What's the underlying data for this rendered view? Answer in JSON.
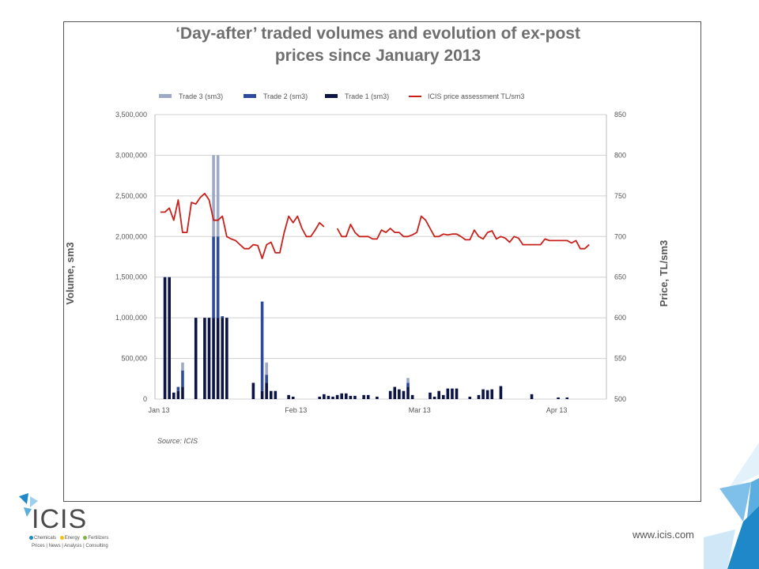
{
  "brand": {
    "name": "ICIS",
    "tagline_items": [
      "Chemicals",
      "Energy",
      "Fertilizers"
    ],
    "tagline_sub": "Prices | News | Analysis | Consulting",
    "website": "www.icis.com",
    "colors": {
      "blue": "#1e88c8",
      "light_blue": "#9dd0ef",
      "yellow": "#f4c20d",
      "green": "#7cb342"
    }
  },
  "chart_data": {
    "type": "bar",
    "title_line1": "‘Day-after’ traded volumes and evolution of ex-post",
    "title_line2": "prices since January 2013",
    "ylabel": "Volume, sm3",
    "y2label": "Price, TL/sm3",
    "source": "Source: ICIS",
    "ylim": [
      0,
      3500000
    ],
    "y2lim": [
      500,
      850
    ],
    "y_ticks": [
      "3,500,000",
      "3,000,000",
      "2,500,000",
      "2,000,000",
      "1,500,000",
      "1,000,000",
      "500,000",
      "0"
    ],
    "y2_ticks": [
      "850",
      "800",
      "750",
      "700",
      "650",
      "600",
      "550",
      "500"
    ],
    "x_ticks": [
      "Jan 13",
      "Feb 13",
      "Mar 13",
      "Apr 13"
    ],
    "legend": [
      {
        "name": "Trade 3 (sm3)",
        "color": "#9ea9c8"
      },
      {
        "name": "Trade 2 (sm3)",
        "color": "#2e4a9a"
      },
      {
        "name": "Trade 1 (sm3)",
        "color": "#0c1446"
      },
      {
        "name": "ICIS price assessment TL/sm3",
        "color": "#c8211b"
      }
    ],
    "grid": true,
    "legend_position": "top",
    "bars": [
      {
        "day": 1,
        "t1": 1500000,
        "t2": 0,
        "t3": 0
      },
      {
        "day": 2,
        "t1": 1500000,
        "t2": 0,
        "t3": 0
      },
      {
        "day": 3,
        "t1": 80000,
        "t2": 0,
        "t3": 0
      },
      {
        "day": 4,
        "t1": 100000,
        "t2": 50000,
        "t3": 0
      },
      {
        "day": 5,
        "t1": 150000,
        "t2": 200000,
        "t3": 100000
      },
      {
        "day": 8,
        "t1": 1000000,
        "t2": 0,
        "t3": 0
      },
      {
        "day": 10,
        "t1": 1000000,
        "t2": 0,
        "t3": 0
      },
      {
        "day": 11,
        "t1": 1000000,
        "t2": 0,
        "t3": 0
      },
      {
        "day": 12,
        "t1": 1000000,
        "t2": 1000000,
        "t3": 1000000
      },
      {
        "day": 13,
        "t1": 1000000,
        "t2": 1000000,
        "t3": 1000000
      },
      {
        "day": 14,
        "t1": 1000000,
        "t2": 20000,
        "t3": 0
      },
      {
        "day": 15,
        "t1": 1000000,
        "t2": 0,
        "t3": 0
      },
      {
        "day": 21,
        "t1": 200000,
        "t2": 0,
        "t3": 0
      },
      {
        "day": 23,
        "t1": 100000,
        "t2": 1100000,
        "t3": 0
      },
      {
        "day": 24,
        "t1": 200000,
        "t2": 100000,
        "t3": 150000
      },
      {
        "day": 25,
        "t1": 100000,
        "t2": 0,
        "t3": 0
      },
      {
        "day": 26,
        "t1": 100000,
        "t2": 0,
        "t3": 0
      },
      {
        "day": 29,
        "t1": 50000,
        "t2": 0,
        "t3": 0
      },
      {
        "day": 30,
        "t1": 30000,
        "t2": 0,
        "t3": 0
      },
      {
        "day": 36,
        "t1": 30000,
        "t2": 0,
        "t3": 0
      },
      {
        "day": 37,
        "t1": 60000,
        "t2": 0,
        "t3": 0
      },
      {
        "day": 38,
        "t1": 40000,
        "t2": 0,
        "t3": 0
      },
      {
        "day": 39,
        "t1": 30000,
        "t2": 0,
        "t3": 0
      },
      {
        "day": 40,
        "t1": 50000,
        "t2": 0,
        "t3": 0
      },
      {
        "day": 41,
        "t1": 70000,
        "t2": 0,
        "t3": 0
      },
      {
        "day": 42,
        "t1": 70000,
        "t2": 0,
        "t3": 0
      },
      {
        "day": 43,
        "t1": 40000,
        "t2": 0,
        "t3": 0
      },
      {
        "day": 44,
        "t1": 40000,
        "t2": 0,
        "t3": 0
      },
      {
        "day": 46,
        "t1": 50000,
        "t2": 0,
        "t3": 0
      },
      {
        "day": 47,
        "t1": 50000,
        "t2": 0,
        "t3": 0
      },
      {
        "day": 49,
        "t1": 30000,
        "t2": 0,
        "t3": 0
      },
      {
        "day": 52,
        "t1": 100000,
        "t2": 0,
        "t3": 0
      },
      {
        "day": 53,
        "t1": 150000,
        "t2": 0,
        "t3": 0
      },
      {
        "day": 54,
        "t1": 120000,
        "t2": 0,
        "t3": 0
      },
      {
        "day": 55,
        "t1": 100000,
        "t2": 0,
        "t3": 0
      },
      {
        "day": 56,
        "t1": 150000,
        "t2": 50000,
        "t3": 60000
      },
      {
        "day": 57,
        "t1": 50000,
        "t2": 0,
        "t3": 0
      },
      {
        "day": 61,
        "t1": 80000,
        "t2": 0,
        "t3": 0
      },
      {
        "day": 62,
        "t1": 30000,
        "t2": 0,
        "t3": 0
      },
      {
        "day": 63,
        "t1": 100000,
        "t2": 0,
        "t3": 0
      },
      {
        "day": 64,
        "t1": 50000,
        "t2": 0,
        "t3": 0
      },
      {
        "day": 65,
        "t1": 130000,
        "t2": 0,
        "t3": 0
      },
      {
        "day": 66,
        "t1": 130000,
        "t2": 0,
        "t3": 0
      },
      {
        "day": 67,
        "t1": 130000,
        "t2": 0,
        "t3": 0
      },
      {
        "day": 70,
        "t1": 30000,
        "t2": 0,
        "t3": 0
      },
      {
        "day": 72,
        "t1": 50000,
        "t2": 0,
        "t3": 0
      },
      {
        "day": 73,
        "t1": 120000,
        "t2": 0,
        "t3": 0
      },
      {
        "day": 74,
        "t1": 110000,
        "t2": 0,
        "t3": 0
      },
      {
        "day": 75,
        "t1": 120000,
        "t2": 0,
        "t3": 0
      },
      {
        "day": 77,
        "t1": 160000,
        "t2": 0,
        "t3": 0
      },
      {
        "day": 84,
        "t1": 60000,
        "t2": 0,
        "t3": 0
      },
      {
        "day": 90,
        "t1": 20000,
        "t2": 0,
        "t3": 0
      },
      {
        "day": 92,
        "t1": 20000,
        "t2": 0,
        "t3": 0
      }
    ],
    "price_segments": [
      [
        [
          0,
          730
        ],
        [
          1,
          730
        ],
        [
          2,
          735
        ],
        [
          3,
          720
        ],
        [
          4,
          745
        ],
        [
          5,
          705
        ],
        [
          6,
          705
        ],
        [
          7,
          742
        ],
        [
          8,
          740
        ],
        [
          9,
          748
        ],
        [
          10,
          753
        ],
        [
          11,
          745
        ],
        [
          12,
          720
        ],
        [
          13,
          720
        ],
        [
          14,
          725
        ],
        [
          15,
          700
        ],
        [
          16,
          697
        ],
        [
          17,
          695
        ],
        [
          18,
          690
        ],
        [
          19,
          685
        ],
        [
          20,
          685
        ],
        [
          21,
          690
        ],
        [
          22,
          689
        ],
        [
          23,
          673
        ],
        [
          24,
          690
        ],
        [
          25,
          693
        ],
        [
          26,
          680
        ],
        [
          27,
          680
        ],
        [
          28,
          705
        ],
        [
          29,
          725
        ],
        [
          30,
          717
        ],
        [
          31,
          725
        ],
        [
          32,
          710
        ],
        [
          33,
          700
        ],
        [
          34,
          700
        ],
        [
          35,
          708
        ],
        [
          36,
          717
        ],
        [
          37,
          712
        ]
      ],
      [
        [
          40,
          710
        ],
        [
          41,
          700
        ],
        [
          42,
          700
        ],
        [
          43,
          715
        ],
        [
          44,
          705
        ],
        [
          45,
          700
        ],
        [
          46,
          700
        ],
        [
          47,
          700
        ],
        [
          48,
          697
        ],
        [
          49,
          697
        ],
        [
          50,
          708
        ],
        [
          51,
          705
        ],
        [
          52,
          710
        ],
        [
          53,
          705
        ],
        [
          54,
          705
        ],
        [
          55,
          700
        ],
        [
          56,
          700
        ],
        [
          57,
          702
        ],
        [
          58,
          705
        ],
        [
          59,
          725
        ],
        [
          60,
          720
        ],
        [
          61,
          710
        ],
        [
          62,
          700
        ],
        [
          63,
          700
        ],
        [
          64,
          703
        ],
        [
          65,
          702
        ],
        [
          66,
          703
        ],
        [
          67,
          703
        ],
        [
          68,
          700
        ],
        [
          69,
          696
        ],
        [
          70,
          696
        ],
        [
          71,
          708
        ],
        [
          72,
          700
        ],
        [
          73,
          697
        ],
        [
          74,
          705
        ],
        [
          75,
          707
        ],
        [
          76,
          697
        ],
        [
          77,
          700
        ],
        [
          78,
          698
        ],
        [
          79,
          693
        ],
        [
          80,
          700
        ],
        [
          81,
          698
        ],
        [
          82,
          690
        ],
        [
          83,
          690
        ],
        [
          84,
          690
        ],
        [
          85,
          690
        ],
        [
          86,
          690
        ],
        [
          87,
          697
        ],
        [
          88,
          695
        ],
        [
          89,
          695
        ],
        [
          90,
          695
        ],
        [
          91,
          695
        ],
        [
          92,
          695
        ],
        [
          93,
          692
        ],
        [
          94,
          695
        ],
        [
          95,
          685
        ],
        [
          96,
          685
        ],
        [
          97,
          690
        ]
      ]
    ]
  }
}
